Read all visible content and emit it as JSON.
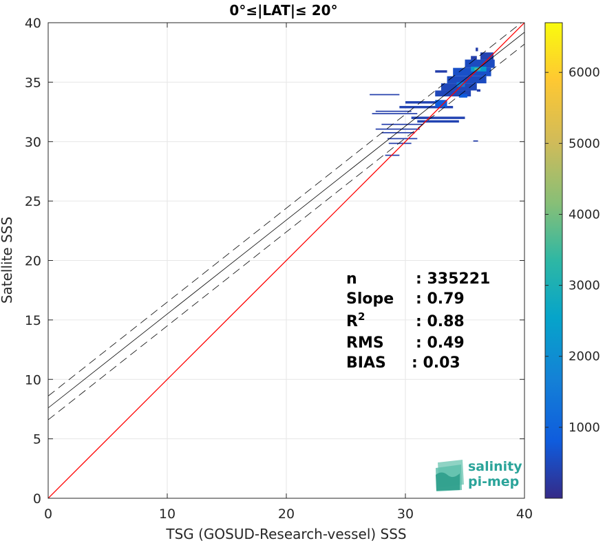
{
  "chart_data": {
    "type": "scatter",
    "title": "0°≤|LAT|≤ 20°",
    "xlabel": "TSG (GOSUD-Research-vessel) SSS",
    "ylabel": "Satellite SSS",
    "xlim": [
      0,
      40
    ],
    "ylim": [
      0,
      40
    ],
    "xticks": [
      "0",
      "10",
      "20",
      "30",
      "40"
    ],
    "yticks": [
      "0",
      "5",
      "10",
      "15",
      "20",
      "25",
      "30",
      "35",
      "40"
    ],
    "grid": true,
    "colorbar": {
      "range": [
        0,
        6700
      ],
      "ticks": [
        "1000",
        "2000",
        "3000",
        "4000",
        "5000",
        "6000"
      ],
      "colormap": "parula"
    },
    "lines": {
      "identity": {
        "slope": 1,
        "intercept": 0,
        "color": "#ff0000"
      },
      "fit": {
        "slope": 0.79,
        "intercept": 7.6,
        "color": "#000000"
      },
      "fit_upper": {
        "slope": 0.79,
        "intercept": 8.6,
        "dash": true
      },
      "fit_lower": {
        "slope": 0.79,
        "intercept": 6.6,
        "dash": true
      }
    },
    "density": [
      {
        "x": [
          27.0,
          29.5
        ],
        "y": [
          33.9,
          34.0
        ],
        "level": 0.05
      },
      {
        "x": [
          27.5,
          30.5
        ],
        "y": [
          32.5,
          32.6
        ],
        "level": 0.05
      },
      {
        "x": [
          27.2,
          31.0
        ],
        "y": [
          32.3,
          32.4
        ],
        "level": 0.05
      },
      {
        "x": [
          28.0,
          31.5
        ],
        "y": [
          31.4,
          31.5
        ],
        "level": 0.05
      },
      {
        "x": [
          27.5,
          31.2
        ],
        "y": [
          31.0,
          31.1
        ],
        "level": 0.05
      },
      {
        "x": [
          28.0,
          30.8
        ],
        "y": [
          30.7,
          30.8
        ],
        "level": 0.05
      },
      {
        "x": [
          28.5,
          31.0
        ],
        "y": [
          30.2,
          30.3
        ],
        "level": 0.05
      },
      {
        "x": [
          28.6,
          30.5
        ],
        "y": [
          29.8,
          29.9
        ],
        "level": 0.05
      },
      {
        "x": [
          28.3,
          29.5
        ],
        "y": [
          28.8,
          28.9
        ],
        "level": 0.05
      },
      {
        "x": [
          30.0,
          33.5
        ],
        "y": [
          33.2,
          33.4
        ],
        "level": 0.06
      },
      {
        "x": [
          29.5,
          34.0
        ],
        "y": [
          32.8,
          33.0
        ],
        "level": 0.06
      },
      {
        "x": [
          30.5,
          35.0
        ],
        "y": [
          31.9,
          32.1
        ],
        "level": 0.06
      },
      {
        "x": [
          31.0,
          34.5
        ],
        "y": [
          31.6,
          31.8
        ],
        "level": 0.06
      },
      {
        "x": [
          32.5,
          35.5
        ],
        "y": [
          33.8,
          34.3
        ],
        "level": 0.07
      },
      {
        "x": [
          33.0,
          36.0
        ],
        "y": [
          34.3,
          34.9
        ],
        "level": 0.07
      },
      {
        "x": [
          33.5,
          36.8
        ],
        "y": [
          34.9,
          35.5
        ],
        "level": 0.08
      },
      {
        "x": [
          34.0,
          37.2
        ],
        "y": [
          35.5,
          36.2
        ],
        "level": 0.09
      },
      {
        "x": [
          35.0,
          37.5
        ],
        "y": [
          36.2,
          36.9
        ],
        "level": 0.08
      },
      {
        "x": [
          36.3,
          37.4
        ],
        "y": [
          36.9,
          37.5
        ],
        "level": 0.06
      },
      {
        "x": [
          35.5,
          36.8
        ],
        "y": [
          35.9,
          36.3
        ],
        "level": 0.35
      },
      {
        "x": [
          35.8,
          36.3
        ],
        "y": [
          36.0,
          36.2
        ],
        "level": 0.55
      },
      {
        "x": [
          34.3,
          35.0
        ],
        "y": [
          34.6,
          35.0
        ],
        "level": 0.22
      },
      {
        "x": [
          32.5,
          33.5
        ],
        "y": [
          32.9,
          33.5
        ],
        "level": 0.12
      },
      {
        "x": [
          34.5,
          35.2
        ],
        "y": [
          33.7,
          34.0
        ],
        "level": 0.12
      },
      {
        "x": [
          36.0,
          36.3
        ],
        "y": [
          34.2,
          34.4
        ],
        "level": 0.05
      },
      {
        "x": [
          35.7,
          36.1
        ],
        "y": [
          30.0,
          30.1
        ],
        "level": 0.05
      },
      {
        "x": [
          32.5,
          33.5
        ],
        "y": [
          35.8,
          36.0
        ],
        "level": 0.05
      },
      {
        "x": [
          35.5,
          36.0
        ],
        "y": [
          36.9,
          37.2
        ],
        "level": 0.05
      },
      {
        "x": [
          35.9,
          36.1
        ],
        "y": [
          37.6,
          37.9
        ],
        "level": 0.05
      }
    ],
    "annotations": [
      {
        "label": "n",
        "value": ": 335221"
      },
      {
        "label": "Slope",
        "value": ": 0.79"
      },
      {
        "label": "R",
        "sup": "2",
        "value": ": 0.88"
      },
      {
        "label": "RMS",
        "value": ": 0.49"
      },
      {
        "label": "BIAS",
        "value": ": 0.03"
      }
    ]
  },
  "logo": {
    "line1": "salinity",
    "line2": "pi-mep"
  }
}
